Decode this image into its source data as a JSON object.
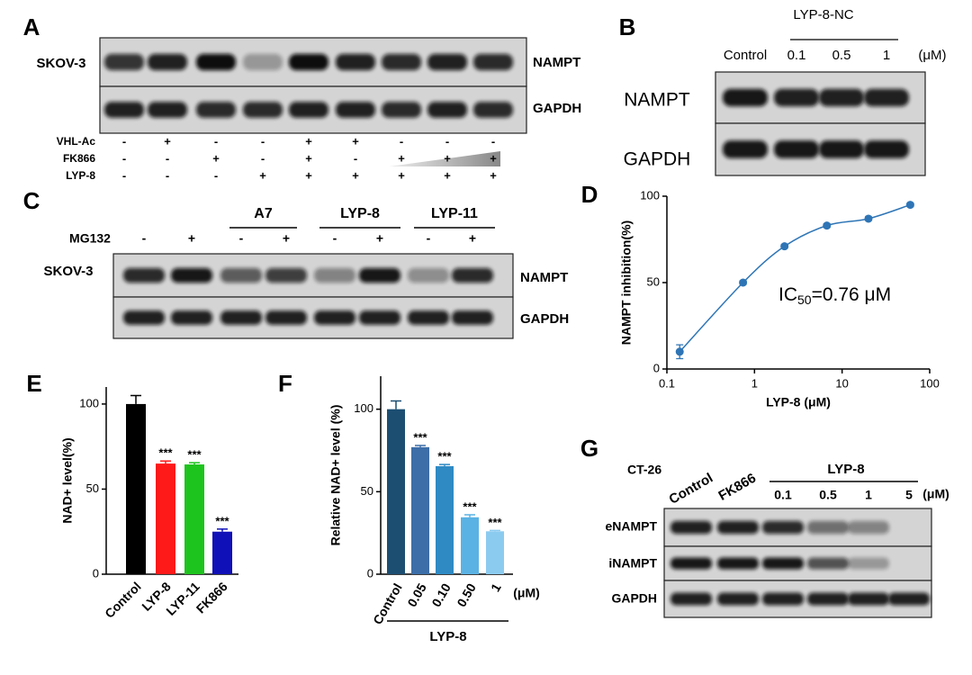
{
  "blots": {
    "A": {
      "letter": "A",
      "cell_line": "SKOV-3",
      "bands": [
        "NAMPT",
        "GAPDH"
      ],
      "rows": [
        {
          "label": "VHL-Ac",
          "signs": [
            "-",
            "+",
            "-",
            "-",
            "+",
            "+",
            "-",
            "-",
            "-"
          ]
        },
        {
          "label": "FK866",
          "signs": [
            "-",
            "-",
            "+",
            "-",
            "+",
            "-",
            "+",
            "+",
            "+"
          ]
        },
        {
          "label": "LYP-8",
          "signs": [
            "-",
            "-",
            "-",
            "+",
            "+",
            "+",
            "+",
            "+",
            "+"
          ]
        }
      ]
    },
    "B": {
      "letter": "B",
      "group": "LYP-8-NC",
      "columns": [
        "Control",
        "0.1",
        "0.5",
        "1"
      ],
      "unit": "(μM)",
      "bands": [
        "NAMPT",
        "GAPDH"
      ]
    },
    "C": {
      "letter": "C",
      "cell_line": "SKOV-3",
      "groups": [
        "A7",
        "LYP-8",
        "LYP-11"
      ],
      "row": {
        "label": "MG132",
        "signs": [
          "-",
          "+",
          "-",
          "+",
          "-",
          "+",
          "-",
          "+"
        ]
      },
      "bands": [
        "NAMPT",
        "GAPDH"
      ]
    },
    "G": {
      "letter": "G",
      "cell_line": "CT-26",
      "columns": [
        "Control",
        "FK866"
      ],
      "group": "LYP-8",
      "doses": [
        "0.1",
        "0.5",
        "1",
        "5"
      ],
      "unit": "(μM)",
      "bands": [
        "eNAMPT",
        "iNAMPT",
        "GAPDH"
      ]
    }
  },
  "chart_data": [
    {
      "type": "scatter",
      "panel": "D",
      "xlabel": "LYP-8 (μM)",
      "ylabel": "NAMPT inhibition(%)",
      "x": [
        0.14,
        0.74,
        2.2,
        6.7,
        20,
        60
      ],
      "values": [
        10,
        50,
        71,
        83,
        87,
        95
      ],
      "errors": [
        4,
        1,
        1,
        1,
        1,
        1
      ],
      "color": "#2e75b6",
      "xscale": "log",
      "xlim": [
        0.1,
        100
      ],
      "xticks": [
        0.1,
        1,
        10,
        100
      ],
      "ylim": [
        0,
        100
      ],
      "yticks": [
        0,
        50,
        100
      ],
      "annotation": [
        "IC",
        "50",
        "=0.76 μM"
      ]
    },
    {
      "type": "bar",
      "panel": "E",
      "ylabel": "NAD+ level(%)",
      "categories": [
        "Control",
        "LYP-8",
        "LYP-11",
        "FK866"
      ],
      "values": [
        100,
        65,
        64.5,
        25
      ],
      "errors": [
        5,
        1.5,
        1,
        1.5
      ],
      "colors": [
        "#000000",
        "#ff1a1a",
        "#1ec41e",
        "#1010b8"
      ],
      "significance": [
        null,
        "***",
        "***",
        "***"
      ],
      "ylim": [
        0,
        110
      ],
      "yticks": [
        0,
        50,
        100
      ]
    },
    {
      "type": "bar",
      "panel": "F",
      "ylabel": "Relative NAD+ level (%)",
      "categories": [
        "Control",
        "0.05",
        "0.10",
        "0.50",
        "1"
      ],
      "values": [
        100,
        77,
        65.5,
        34.5,
        26
      ],
      "errors": [
        5,
        1,
        1,
        1.5,
        0.5
      ],
      "colors": [
        "#1c4e72",
        "#3d6ea8",
        "#2f8ac4",
        "#5ab2e4",
        "#8ccbf0"
      ],
      "significance": [
        null,
        "***",
        "***",
        "***",
        "***"
      ],
      "unit": "(μM)",
      "group_label": "LYP-8",
      "ylim": [
        0,
        120
      ],
      "yticks": [
        0,
        50,
        100
      ]
    }
  ]
}
